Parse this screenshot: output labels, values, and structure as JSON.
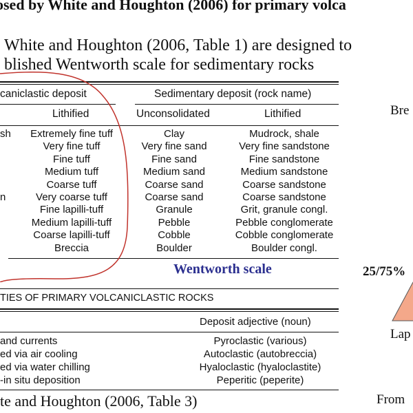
{
  "title": "osed by White and Houghton (2006) for primary volca",
  "intro": {
    "line1": "White and Houghton (2006, Table 1) are designed to",
    "line2": "blished Wentworth scale for sedimentary rocks"
  },
  "table1": {
    "header_volcaniclastic": "caniclastic deposit",
    "header_sedimentary": "Sedimentary deposit (rock name)",
    "sub_lithified": "Lithified",
    "sub_unconsolidated": "Unconsolidated",
    "sub_lithified2": "Lithified",
    "left_fragments": [
      "sh",
      "",
      "",
      "",
      "",
      "n",
      "",
      "",
      "",
      ""
    ],
    "rows": [
      {
        "volc_lithified": "Extremely fine tuff",
        "unconsolidated": "Clay",
        "lithified": "Mudrock, shale"
      },
      {
        "volc_lithified": "Very fine tuff",
        "unconsolidated": "Very fine sand",
        "lithified": "Very fine sandstone"
      },
      {
        "volc_lithified": "Fine tuff",
        "unconsolidated": "Fine sand",
        "lithified": "Fine sandstone"
      },
      {
        "volc_lithified": "Medium tuff",
        "unconsolidated": "Medium sand",
        "lithified": "Medium sandstone"
      },
      {
        "volc_lithified": "Coarse tuff",
        "unconsolidated": "Coarse sand",
        "lithified": "Coarse sandstone"
      },
      {
        "volc_lithified": "Very coarse tuff",
        "unconsolidated": "Coarse sand",
        "lithified": "Coarse sandstone"
      },
      {
        "volc_lithified": "Fine lapilli-tuff",
        "unconsolidated": "Granule",
        "lithified": "Grit, granule congl."
      },
      {
        "volc_lithified": "Medium lapilli-tuff",
        "unconsolidated": "Pebble",
        "lithified": "Pebble conglomerate"
      },
      {
        "volc_lithified": "Coarse lapilli-tuff",
        "unconsolidated": "Cobble",
        "lithified": "Cobble conglomerate"
      },
      {
        "volc_lithified": "Breccia",
        "unconsolidated": "Boulder",
        "lithified": "Boulder congl."
      }
    ]
  },
  "wentworth_label": "Wentworth scale",
  "table3": {
    "title": "TIES OF PRIMARY VOLCANICLASTIC ROCKS",
    "header_adjective": "Deposit adjective (noun)",
    "rows": [
      {
        "left": "and currents",
        "right": "Pyroclastic (various)"
      },
      {
        "left": "ed via air cooling",
        "right": "Autoclastic (autobreccia)"
      },
      {
        "left": "ed via water chilling",
        "right": "Hyaloclastic (hyaloclastite)"
      },
      {
        "left": "-in situ deposition",
        "right": "Peperitic (peperite)"
      }
    ]
  },
  "caption": "te and Houghton (2006, Table 3)",
  "side": {
    "bre": "Bre",
    "ratio": "25/75%",
    "lap": "Lap",
    "from": "From"
  },
  "colors": {
    "annotation_circle": "#c0322b",
    "wentworth_text": "#2b2f8f",
    "triangle_fill": "#f4a88a"
  }
}
